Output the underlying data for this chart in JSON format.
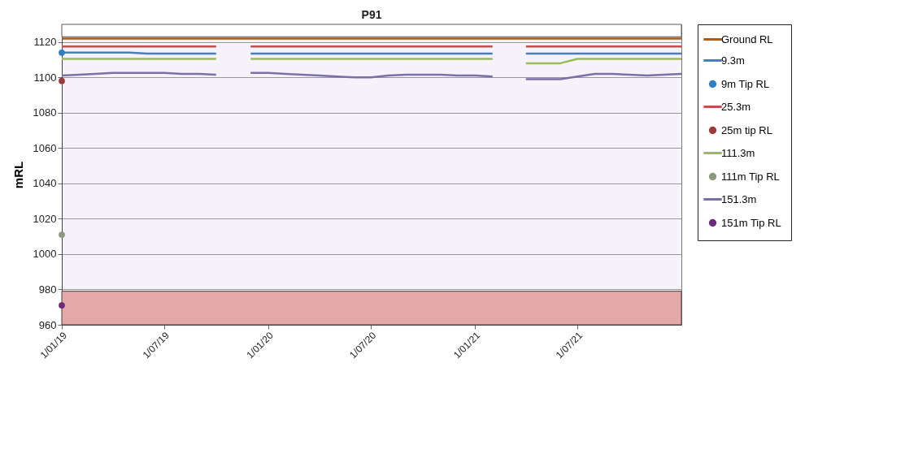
{
  "chart_data": {
    "type": "line",
    "title": "P91",
    "ylabel": "mRL",
    "x": [
      "2019-01-01",
      "2019-02-01",
      "2019-03-01",
      "2019-04-01",
      "2019-05-01",
      "2019-06-01",
      "2019-07-01",
      "2019-08-01",
      "2019-09-01",
      "2019-10-01",
      "2019-11-01",
      "2019-12-01",
      "2020-01-01",
      "2020-02-01",
      "2020-03-01",
      "2020-04-01",
      "2020-05-01",
      "2020-06-01",
      "2020-07-01",
      "2020-08-01",
      "2020-09-01",
      "2020-10-01",
      "2020-11-01",
      "2020-12-01",
      "2021-01-01",
      "2021-02-01",
      "2021-03-01",
      "2021-04-01",
      "2021-05-01",
      "2021-06-01",
      "2021-07-01",
      "2021-08-01",
      "2021-09-01",
      "2021-10-01",
      "2021-11-01",
      "2021-12-01",
      "2022-01-01"
    ],
    "series": [
      {
        "name": "Ground RL",
        "color": "#b35a12",
        "values": [
          1122,
          1122,
          1122,
          1122,
          1122,
          1122,
          1122,
          1122,
          1122,
          1122,
          1122,
          1122,
          1122,
          1122,
          1122,
          1122,
          1122,
          1122,
          1122,
          1122,
          1122,
          1122,
          1122,
          1122,
          1122,
          1122,
          1122,
          1122,
          1122,
          1122,
          1122,
          1122,
          1122,
          1122,
          1122,
          1122,
          1122
        ]
      },
      {
        "name": "9.3m",
        "color": "#4a7ebb",
        "values": [
          1114,
          1114,
          1114,
          1114,
          1114,
          1113.5,
          1113.5,
          1113.5,
          1113.5,
          1113.5,
          null,
          1113.5,
          1113.5,
          1113.5,
          1113.5,
          1113.5,
          1113.5,
          1113.5,
          1113.5,
          1113.5,
          1113.5,
          1113.5,
          1113.5,
          1113.5,
          1113.5,
          1113.5,
          null,
          1113.5,
          1113.5,
          1113.5,
          1113.5,
          1113.5,
          1113.5,
          1113.5,
          1113.5,
          1113.5,
          1113.5
        ]
      },
      {
        "name": "9m Tip RL",
        "type": "scatter",
        "marker": "circle",
        "color": "#2f7fc1",
        "x": [
          "2019-01-01"
        ],
        "values": [
          1114
        ]
      },
      {
        "name": "25.3m",
        "color": "#c0504d",
        "values": [
          1117.5,
          1117.5,
          1117.5,
          1117.5,
          1117.5,
          1117.5,
          1117.5,
          1117.5,
          1117.5,
          1117.5,
          null,
          1117.5,
          1117.5,
          1117.5,
          1117.5,
          1117.5,
          1117.5,
          1117.5,
          1117.5,
          1117.5,
          1117.5,
          1117.5,
          1117.5,
          1117.5,
          1117.5,
          1117.5,
          null,
          1117.5,
          1117.5,
          1117.5,
          1117.5,
          1117.5,
          1117.5,
          1117.5,
          1117.5,
          1117.5,
          1117.5
        ]
      },
      {
        "name": "25m tip RL",
        "type": "scatter",
        "marker": "circle",
        "color": "#9c3b3b",
        "x": [
          "2019-01-01"
        ],
        "values": [
          1098
        ]
      },
      {
        "name": "111.3m",
        "color": "#9bbb59",
        "values": [
          1110.5,
          1110.5,
          1110.5,
          1110.5,
          1110.5,
          1110.5,
          1110.5,
          1110.5,
          1110.5,
          1110.5,
          null,
          1110.5,
          1110.5,
          1110.5,
          1110.5,
          1110.5,
          1110.5,
          1110.5,
          1110.5,
          1110.5,
          1110.5,
          1110.5,
          1110.5,
          1110.5,
          1110.5,
          1110.5,
          null,
          1108,
          1108,
          1108,
          1110.5,
          1110.5,
          1110.5,
          1110.5,
          1110.5,
          1110.5,
          1110.5
        ]
      },
      {
        "name": "111m Tip RL",
        "type": "scatter",
        "marker": "circle",
        "color": "#8a9a7a",
        "x": [
          "2019-01-01"
        ],
        "values": [
          1011
        ]
      },
      {
        "name": "151.3m",
        "color": "#7b6fa8",
        "values": [
          1101,
          1101.5,
          1102,
          1102.5,
          1102.5,
          1102.5,
          1102.5,
          1102,
          1102,
          1101.5,
          null,
          1102.5,
          1102.5,
          1102,
          1101.5,
          1101,
          1100.5,
          1100,
          1100,
          1101,
          1101.5,
          1101.5,
          1101.5,
          1101,
          1101,
          1100.5,
          null,
          1099,
          1099,
          1099,
          1100.5,
          1102,
          1102,
          1101.5,
          1101,
          1101.5,
          1102
        ]
      },
      {
        "name": "151m Tip RL",
        "type": "scatter",
        "marker": "circle",
        "color": "#6b2a7a",
        "x": [
          "2019-01-01"
        ],
        "values": [
          971
        ]
      }
    ],
    "bands": [
      {
        "axis": "y",
        "from": 1123,
        "to": 1130,
        "color": "#ffffff"
      },
      {
        "axis": "y",
        "from": 960,
        "to": 979,
        "color": "#e3a9a9"
      }
    ],
    "xlim": [
      "2019-01-01",
      "2022-01-01"
    ],
    "xticks": [
      {
        "value": "2019-01-01",
        "label": "1/01/19"
      },
      {
        "value": "2019-07-01",
        "label": "1/07/19"
      },
      {
        "value": "2020-01-01",
        "label": "1/01/20"
      },
      {
        "value": "2020-07-01",
        "label": "1/07/20"
      },
      {
        "value": "2021-01-01",
        "label": "1/01/21"
      },
      {
        "value": "2021-07-01",
        "label": "1/07/21"
      }
    ],
    "ylim": [
      960,
      1130
    ],
    "yticks": [
      960,
      980,
      1000,
      1020,
      1040,
      1060,
      1080,
      1100,
      1120
    ],
    "grid": "y",
    "legend": "right",
    "line_style": "solid"
  }
}
